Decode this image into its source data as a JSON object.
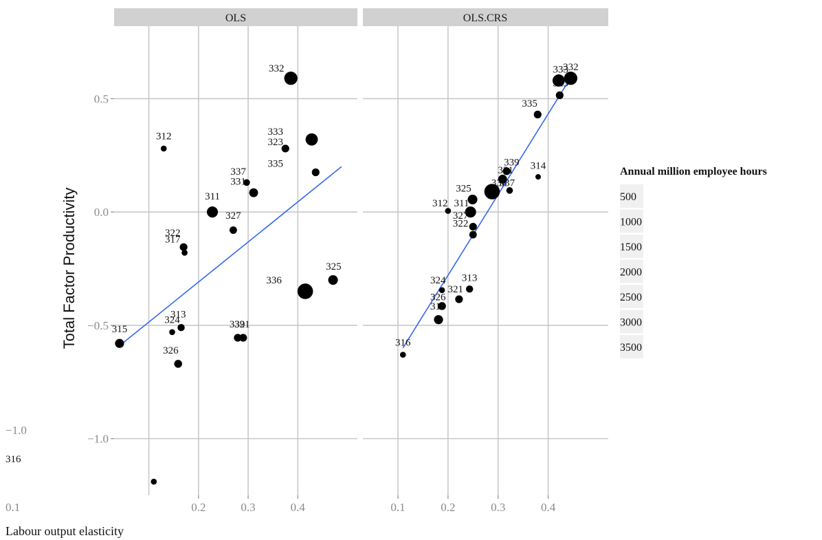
{
  "chart_data": {
    "type": "scatter",
    "xlabel": "Labour output elasticity",
    "ylabel": "Total Factor Productivity",
    "ylim": [
      -1.25,
      0.82
    ],
    "y_ticks": [
      -1.0,
      -0.5,
      0.0,
      0.5
    ],
    "y_tick_labels": [
      "−1.0",
      "−0.5",
      "0.0",
      "0.5"
    ],
    "size_legend": {
      "title": "Annual million employee hours",
      "labels": [
        "500",
        "1000",
        "1500",
        "2000",
        "2500",
        "3000",
        "3500"
      ]
    },
    "panels": [
      {
        "name": "OLS",
        "xlim": [
          0.03,
          0.52
        ],
        "x_ticks": [
          0.2,
          0.3,
          0.4
        ],
        "x_tick_labels": [
          "0.2",
          "0.3",
          "0.4"
        ],
        "trend": {
          "x": [
            0.041,
            0.488
          ],
          "y": [
            -0.59,
            0.2
          ]
        },
        "points": [
          {
            "id": "315",
            "x": 0.041,
            "y": -0.58,
            "hours": 800
          },
          {
            "id": "316",
            "x": 0.11,
            "y": -1.19,
            "hours": 150
          },
          {
            "id": "312",
            "x": 0.13,
            "y": 0.28,
            "hours": 150
          },
          {
            "id": "324",
            "x": 0.147,
            "y": -0.53,
            "hours": 150
          },
          {
            "id": "326",
            "x": 0.159,
            "y": -0.67,
            "hours": 500
          },
          {
            "id": "313",
            "x": 0.165,
            "y": -0.51,
            "hours": 350
          },
          {
            "id": "322",
            "x": 0.17,
            "y": -0.155,
            "hours": 450
          },
          {
            "id": "317",
            "x": 0.172,
            "y": -0.18,
            "hours": 150
          },
          {
            "id": "311",
            "x": 0.228,
            "y": 0.0,
            "hours": 1500
          },
          {
            "id": "327",
            "x": 0.27,
            "y": -0.08,
            "hours": 400
          },
          {
            "id": "339",
            "x": 0.279,
            "y": -0.555,
            "hours": 450
          },
          {
            "id": "321",
            "x": 0.29,
            "y": -0.555,
            "hours": 450
          },
          {
            "id": "337",
            "x": 0.297,
            "y": 0.13,
            "hours": 250
          },
          {
            "id": "331",
            "x": 0.311,
            "y": 0.085,
            "hours": 750
          },
          {
            "id": "323",
            "x": 0.375,
            "y": 0.28,
            "hours": 450
          },
          {
            "id": "332",
            "x": 0.386,
            "y": 0.59,
            "hours": 2500
          },
          {
            "id": "336",
            "x": 0.415,
            "y": -0.35,
            "hours": 3800
          },
          {
            "id": "333",
            "x": 0.428,
            "y": 0.32,
            "hours": 2000
          },
          {
            "id": "335",
            "x": 0.436,
            "y": 0.175,
            "hours": 450
          },
          {
            "id": "325",
            "x": 0.471,
            "y": -0.3,
            "hours": 1000
          }
        ],
        "labels": [
          {
            "text": "315",
            "x": 0.041,
            "y": -0.53
          },
          {
            "text": "312",
            "x": 0.13,
            "y": 0.32
          },
          {
            "text": "324",
            "x": 0.147,
            "y": -0.49
          },
          {
            "text": "313",
            "x": 0.159,
            "y": -0.465
          },
          {
            "text": "326",
            "x": 0.144,
            "y": -0.625
          },
          {
            "text": "322",
            "x": 0.148,
            "y": -0.105
          },
          {
            "text": "317",
            "x": 0.148,
            "y": -0.135
          },
          {
            "text": "311",
            "x": 0.228,
            "y": 0.055
          },
          {
            "text": "327",
            "x": 0.27,
            "y": -0.03
          },
          {
            "text": "339",
            "x": 0.278,
            "y": -0.51
          },
          {
            "text": "321",
            "x": 0.288,
            "y": -0.51
          },
          {
            "text": "337",
            "x": 0.28,
            "y": 0.165
          },
          {
            "text": "331",
            "x": 0.28,
            "y": 0.12
          },
          {
            "text": "335",
            "x": 0.355,
            "y": 0.2
          },
          {
            "text": "323",
            "x": 0.355,
            "y": 0.295
          },
          {
            "text": "333",
            "x": 0.355,
            "y": 0.34
          },
          {
            "text": "332",
            "x": 0.357,
            "y": 0.62
          },
          {
            "text": "336",
            "x": 0.352,
            "y": -0.315
          },
          {
            "text": "325",
            "x": 0.472,
            "y": -0.255
          }
        ]
      },
      {
        "name": "OLS.CRS",
        "xlim": [
          0.03,
          0.52
        ],
        "x_ticks": [
          0.1,
          0.2,
          0.3,
          0.4
        ],
        "x_tick_labels": [
          "0.1",
          "0.2",
          "0.3",
          "0.4"
        ],
        "trend": {
          "x": [
            0.11,
            0.447
          ],
          "y": [
            -0.6,
            0.6
          ]
        },
        "points": [
          {
            "id": "316",
            "x": 0.11,
            "y": -0.63,
            "hours": 150
          },
          {
            "id": "315",
            "x": 0.181,
            "y": -0.475,
            "hours": 800
          },
          {
            "id": "324",
            "x": 0.188,
            "y": -0.345,
            "hours": 150
          },
          {
            "id": "326",
            "x": 0.188,
            "y": -0.415,
            "hours": 500
          },
          {
            "id": "312",
            "x": 0.2,
            "y": 0.005,
            "hours": 150
          },
          {
            "id": "321",
            "x": 0.222,
            "y": -0.385,
            "hours": 450
          },
          {
            "id": "313",
            "x": 0.243,
            "y": -0.34,
            "hours": 350
          },
          {
            "id": "311",
            "x": 0.245,
            "y": 0.0,
            "hours": 1500
          },
          {
            "id": "325",
            "x": 0.249,
            "y": 0.055,
            "hours": 1000
          },
          {
            "id": "322",
            "x": 0.25,
            "y": -0.065,
            "hours": 450
          },
          {
            "id": "327",
            "x": 0.25,
            "y": -0.1,
            "hours": 400
          },
          {
            "id": "336",
            "x": 0.288,
            "y": 0.09,
            "hours": 3800
          },
          {
            "id": "331",
            "x": 0.309,
            "y": 0.145,
            "hours": 750
          },
          {
            "id": "339",
            "x": 0.317,
            "y": 0.18,
            "hours": 450
          },
          {
            "id": "337",
            "x": 0.323,
            "y": 0.095,
            "hours": 250
          },
          {
            "id": "335",
            "x": 0.379,
            "y": 0.43,
            "hours": 450
          },
          {
            "id": "314",
            "x": 0.38,
            "y": 0.155,
            "hours": 100
          },
          {
            "id": "323",
            "x": 0.423,
            "y": 0.515,
            "hours": 450
          },
          {
            "id": "333",
            "x": 0.421,
            "y": 0.58,
            "hours": 2000
          },
          {
            "id": "332",
            "x": 0.445,
            "y": 0.59,
            "hours": 2500
          }
        ],
        "labels": [
          {
            "text": "316",
            "x": 0.11,
            "y": -0.59
          },
          {
            "text": "315",
            "x": 0.18,
            "y": -0.43
          },
          {
            "text": "326",
            "x": 0.18,
            "y": -0.39
          },
          {
            "text": "324",
            "x": 0.18,
            "y": -0.315
          },
          {
            "text": "321",
            "x": 0.215,
            "y": -0.355
          },
          {
            "text": "313",
            "x": 0.243,
            "y": -0.305
          },
          {
            "text": "312",
            "x": 0.184,
            "y": 0.025
          },
          {
            "text": "311",
            "x": 0.227,
            "y": 0.025
          },
          {
            "text": "327",
            "x": 0.225,
            "y": -0.03
          },
          {
            "text": "322",
            "x": 0.225,
            "y": -0.065
          },
          {
            "text": "325",
            "x": 0.231,
            "y": 0.09
          },
          {
            "text": "339",
            "x": 0.327,
            "y": 0.205
          },
          {
            "text": "331",
            "x": 0.315,
            "y": 0.17
          },
          {
            "text": "336",
            "x": 0.302,
            "y": 0.115
          },
          {
            "text": "337",
            "x": 0.318,
            "y": 0.115
          },
          {
            "text": "314",
            "x": 0.38,
            "y": 0.19
          },
          {
            "text": "335",
            "x": 0.363,
            "y": 0.465
          },
          {
            "text": "333",
            "x": 0.425,
            "y": 0.615
          },
          {
            "text": "323",
            "x": 0.425,
            "y": 0.555
          },
          {
            "text": "332",
            "x": 0.445,
            "y": 0.625
          }
        ]
      }
    ],
    "stray_annotations": {
      "y_tick": "−1.0",
      "label": "316",
      "x_tick": "0.1"
    }
  },
  "colors": {
    "points": "#000000",
    "trend": "#3366ee",
    "grid": "#c8c8c8",
    "strip": "#d1d1d1"
  }
}
